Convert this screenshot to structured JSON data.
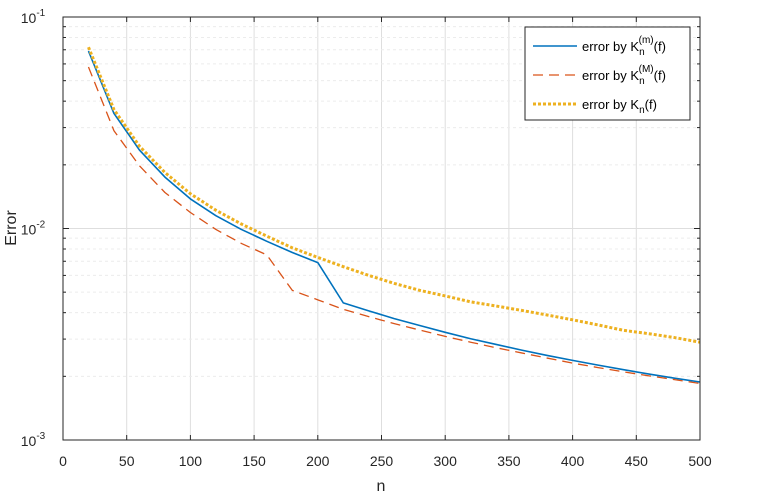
{
  "chart_data": {
    "type": "line",
    "xlabel": "n",
    "ylabel": "Error",
    "xlim": [
      0,
      500
    ],
    "ylim": [
      0.001,
      0.1
    ],
    "yscale": "log",
    "grid": true,
    "legend_location": "top-right",
    "x_ticks": [
      "0",
      "50",
      "100",
      "150",
      "200",
      "250",
      "300",
      "350",
      "400",
      "450",
      "500"
    ],
    "y_ticks": [
      {
        "base": "10",
        "exp": "-3"
      },
      {
        "base": "10",
        "exp": "-2"
      },
      {
        "base": "10",
        "exp": "-1"
      }
    ],
    "x": [
      20,
      40,
      60,
      80,
      100,
      120,
      140,
      160,
      180,
      200,
      220,
      240,
      260,
      280,
      300,
      320,
      340,
      360,
      380,
      400,
      420,
      440,
      460,
      480,
      500
    ],
    "series": [
      {
        "legend_text": "error by K",
        "legend_sub": "n",
        "legend_sup": "(m)",
        "legend_suffix": "(f)",
        "color": "#0072BD",
        "style": "solid",
        "values": [
          0.069,
          0.035,
          0.0235,
          0.0175,
          0.0138,
          0.0115,
          0.0099,
          0.0087,
          0.0077,
          0.0069,
          0.00445,
          0.00408,
          0.00375,
          0.00348,
          0.00323,
          0.00301,
          0.00283,
          0.00266,
          0.00251,
          0.00238,
          0.00226,
          0.00215,
          0.00205,
          0.00196,
          0.00188
        ]
      },
      {
        "legend_text": "error by K",
        "legend_sub": "n",
        "legend_sup": "(M)",
        "legend_suffix": "(f)",
        "color": "#D95319",
        "style": "dashed",
        "values": [
          0.058,
          0.029,
          0.0198,
          0.0148,
          0.0119,
          0.0099,
          0.0085,
          0.0075,
          0.0051,
          0.0046,
          0.00415,
          0.00383,
          0.00355,
          0.00331,
          0.00309,
          0.0029,
          0.00273,
          0.00258,
          0.00244,
          0.00231,
          0.0022,
          0.0021,
          0.00201,
          0.00193,
          0.00185
        ]
      },
      {
        "legend_text": "error by K",
        "legend_sub": "n",
        "legend_sup": "",
        "legend_suffix": "(f)",
        "color": "#EDB120",
        "style": "dotted",
        "values": [
          0.072,
          0.0365,
          0.0245,
          0.0184,
          0.0146,
          0.0122,
          0.0105,
          0.0092,
          0.0081,
          0.0073,
          0.0066,
          0.006,
          0.0055,
          0.0051,
          0.0048,
          0.0045,
          0.0043,
          0.0041,
          0.0039,
          0.0037,
          0.0035,
          0.0033,
          0.00318,
          0.00305,
          0.0029
        ]
      }
    ]
  }
}
